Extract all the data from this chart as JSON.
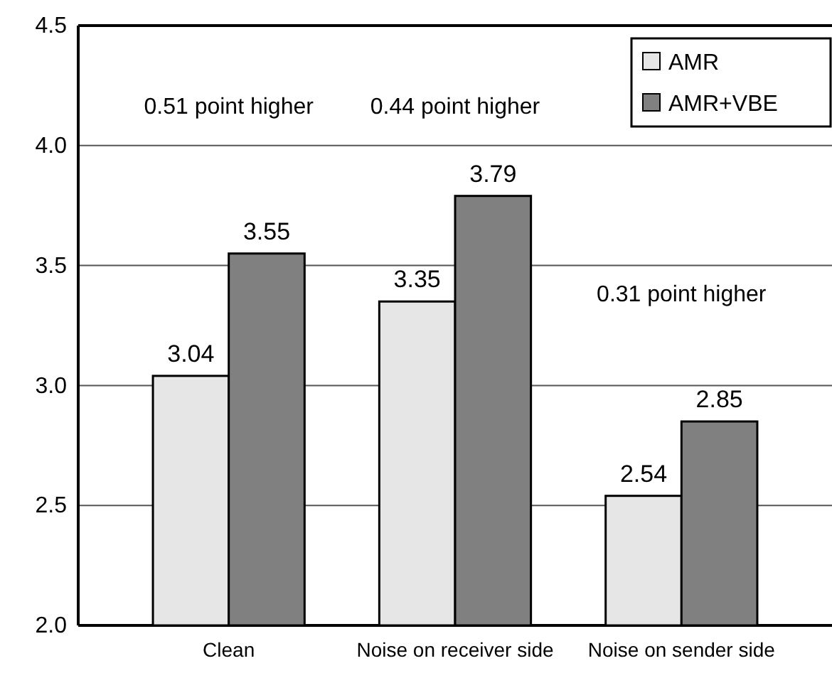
{
  "chart_data": {
    "type": "bar",
    "categories": [
      "Clean",
      "Noise on receiver side",
      "Noise on sender side"
    ],
    "series": [
      {
        "name": "AMR",
        "color": "#e6e6e6",
        "values": [
          3.04,
          3.35,
          2.54
        ]
      },
      {
        "name": "AMR+VBE",
        "color": "#808080",
        "values": [
          3.55,
          3.79,
          2.85
        ]
      }
    ],
    "ylim": [
      2.0,
      4.5
    ],
    "yticks": [
      {
        "value": 2.0,
        "label": "2.0"
      },
      {
        "value": 2.5,
        "label": "2.5"
      },
      {
        "value": 3.0,
        "label": "3.0"
      },
      {
        "value": 3.5,
        "label": "3.5"
      },
      {
        "value": 4.0,
        "label": "4.0"
      },
      {
        "value": 4.5,
        "label": "4.5"
      }
    ],
    "grid": "y",
    "legend": "top right",
    "data_labels": true,
    "annotations": [
      "0.51 point higher",
      "0.44 point higher",
      "0.31 point higher"
    ]
  }
}
